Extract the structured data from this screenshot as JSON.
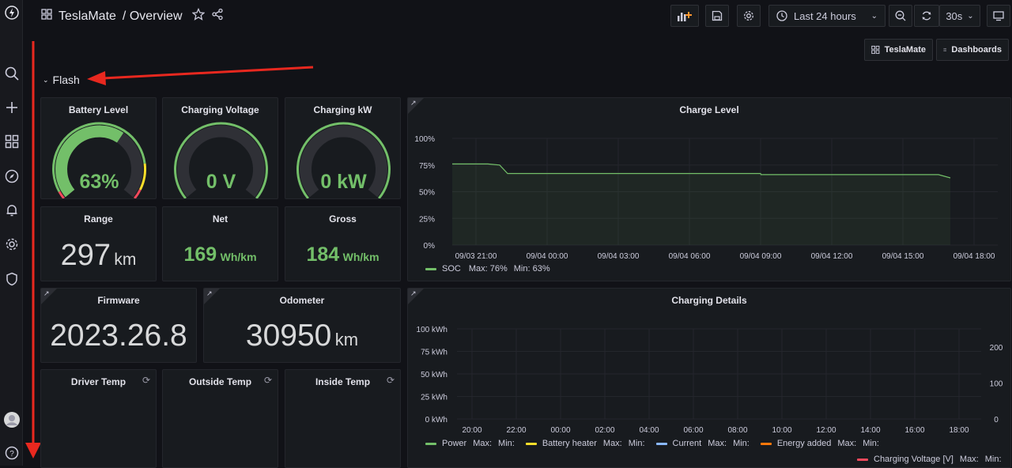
{
  "header": {
    "app_title": "TeslaMate",
    "page": "/ Overview",
    "time_range": "Last 24 hours",
    "refresh_interval": "30s"
  },
  "links": {
    "teslamate": "TeslaMate",
    "dashboards": "Dashboards"
  },
  "row": {
    "title": "Flash"
  },
  "gauges": [
    {
      "title": "Battery Level",
      "value": "63%",
      "fraction": 0.63
    },
    {
      "title": "Charging Voltage",
      "value": "0 V",
      "fraction": 0
    },
    {
      "title": "Charging kW",
      "value": "0 kW",
      "fraction": 0
    }
  ],
  "stats": {
    "range": {
      "title": "Range",
      "value": "297",
      "unit": "km"
    },
    "net": {
      "title": "Net",
      "value": "169",
      "unit": "Wh/km"
    },
    "gross": {
      "title": "Gross",
      "value": "184",
      "unit": "Wh/km"
    },
    "firmware": {
      "title": "Firmware",
      "value": "2023.26.8"
    },
    "odometer": {
      "title": "Odometer",
      "value": "30950",
      "unit": "km"
    }
  },
  "temps": [
    {
      "title": "Driver Temp"
    },
    {
      "title": "Outside Temp"
    },
    {
      "title": "Inside Temp"
    }
  ],
  "charge_level": {
    "title": "Charge Level",
    "legend": {
      "name": "SOC",
      "max": "Max: 76%",
      "min": "Min: 63%"
    },
    "color": "#73bf69"
  },
  "charging_details": {
    "title": "Charging Details",
    "legend": [
      {
        "name": "Power",
        "max": "Max:",
        "min": "Min:",
        "color": "#73bf69"
      },
      {
        "name": "Battery heater",
        "max": "Max:",
        "min": "Min:",
        "color": "#fade2a"
      },
      {
        "name": "Current",
        "max": "Max:",
        "min": "Min:",
        "color": "#8ab8ff"
      },
      {
        "name": "Energy added",
        "max": "Max:",
        "min": "Min:",
        "color": "#ff780a"
      },
      {
        "name": "Charging Voltage [V]",
        "max": "Max:",
        "min": "Min:",
        "color": "#f2495c"
      }
    ]
  },
  "chart_data": [
    {
      "type": "area",
      "title": "Charge Level",
      "x_ticks": [
        "09/03 21:00",
        "09/04 00:00",
        "09/04 03:00",
        "09/04 06:00",
        "09/04 09:00",
        "09/04 12:00",
        "09/04 15:00",
        "09/04 18:00"
      ],
      "y_ticks": [
        "100%",
        "75%",
        "50%",
        "25%",
        "0%"
      ],
      "ylim": [
        0,
        100
      ],
      "series": [
        {
          "name": "SOC",
          "x": [
            "09/03 20:00",
            "09/03 21:30",
            "09/03 22:00",
            "09/03 22:20",
            "09/04 09:00",
            "09/04 09:01",
            "09/04 16:30",
            "09/04 17:00"
          ],
          "values": [
            76,
            76,
            75,
            67,
            67,
            66,
            66,
            63
          ]
        }
      ]
    },
    {
      "type": "line",
      "title": "Charging Details",
      "x_ticks": [
        "20:00",
        "22:00",
        "00:00",
        "02:00",
        "04:00",
        "06:00",
        "08:00",
        "10:00",
        "12:00",
        "14:00",
        "16:00",
        "18:00"
      ],
      "y_ticks": [
        "100 kWh",
        "75 kWh",
        "50 kWh",
        "25 kWh",
        "0 kWh"
      ],
      "y2_ticks": [
        "200",
        "100",
        "0"
      ],
      "ylim": [
        0,
        100
      ],
      "y2lim": [
        0,
        200
      ],
      "series": []
    }
  ]
}
